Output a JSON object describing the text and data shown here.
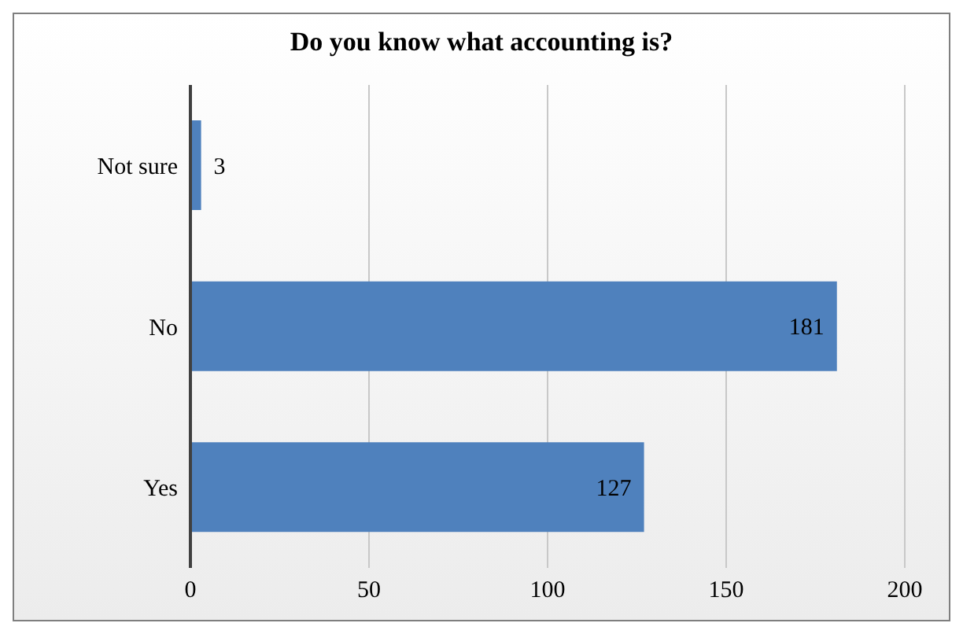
{
  "chart_data": {
    "type": "bar",
    "orientation": "horizontal",
    "title": "Do you know what accounting is?",
    "categories": [
      "Not sure",
      "No",
      "Yes"
    ],
    "values": [
      3,
      181,
      127
    ],
    "color": "#4f81bd",
    "xlim": [
      0,
      200
    ],
    "xticks": [
      0,
      50,
      100,
      150,
      200
    ],
    "grid": "x",
    "data_labels": true
  }
}
